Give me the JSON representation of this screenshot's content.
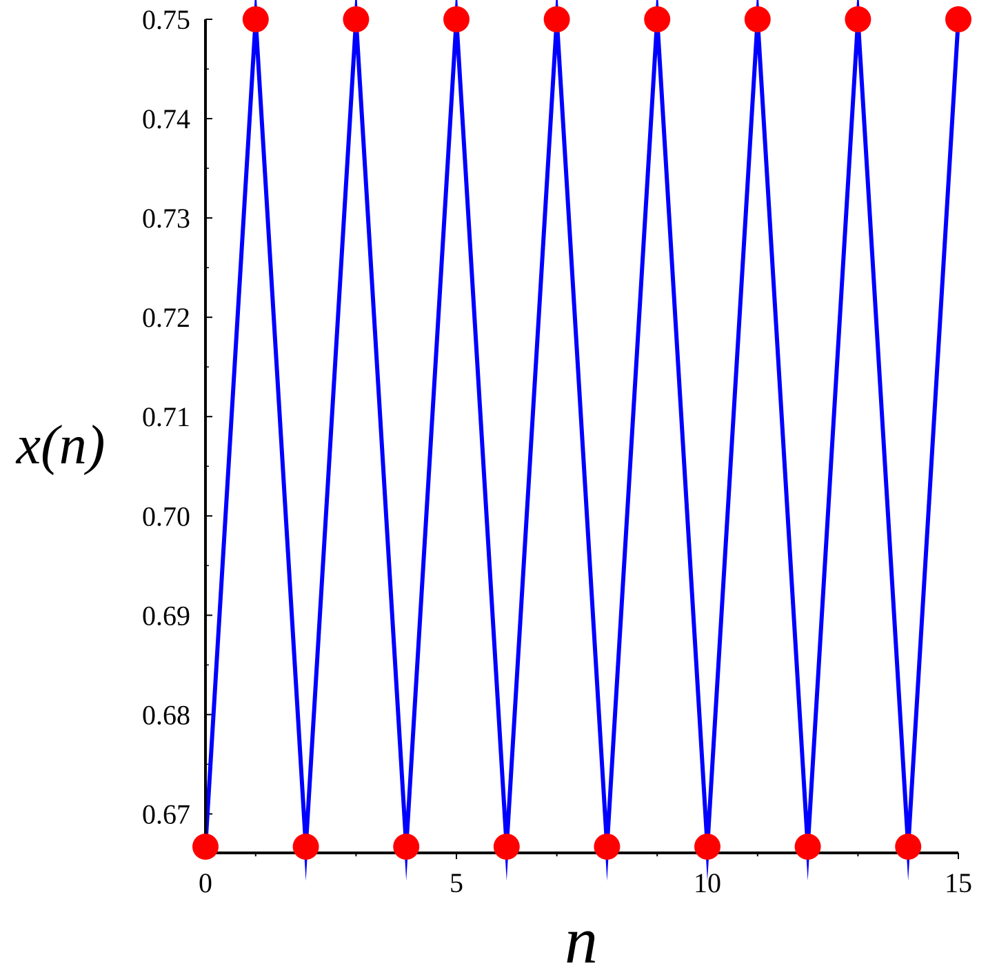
{
  "chart_data": {
    "type": "line",
    "title": "",
    "xlabel": "n",
    "ylabel": "x(n)",
    "xlim": [
      0,
      15
    ],
    "ylim": [
      0.6667,
      0.75
    ],
    "x_ticks": [
      0,
      5,
      10,
      15
    ],
    "x_tick_labels": [
      "0",
      "5",
      "10",
      "15"
    ],
    "y_ticks": [
      0.67,
      0.68,
      0.69,
      0.7,
      0.71,
      0.72,
      0.73,
      0.74,
      0.75
    ],
    "y_tick_labels": [
      "0.67",
      "0.68",
      "0.69",
      "0.70",
      "0.71",
      "0.72",
      "0.73",
      "0.74",
      "0.75"
    ],
    "grid": false,
    "legend": "none",
    "series": [
      {
        "x": [
          0,
          1,
          2,
          3,
          4,
          5,
          6,
          7,
          8,
          9,
          10,
          11,
          12,
          13,
          14,
          15
        ],
        "values": [
          0.6667,
          0.75,
          0.6667,
          0.75,
          0.6667,
          0.75,
          0.6667,
          0.75,
          0.6667,
          0.75,
          0.6667,
          0.75,
          0.6667,
          0.75,
          0.6667,
          0.75
        ],
        "line_color": "#0000ff",
        "marker_color": "#ff0000"
      }
    ]
  }
}
